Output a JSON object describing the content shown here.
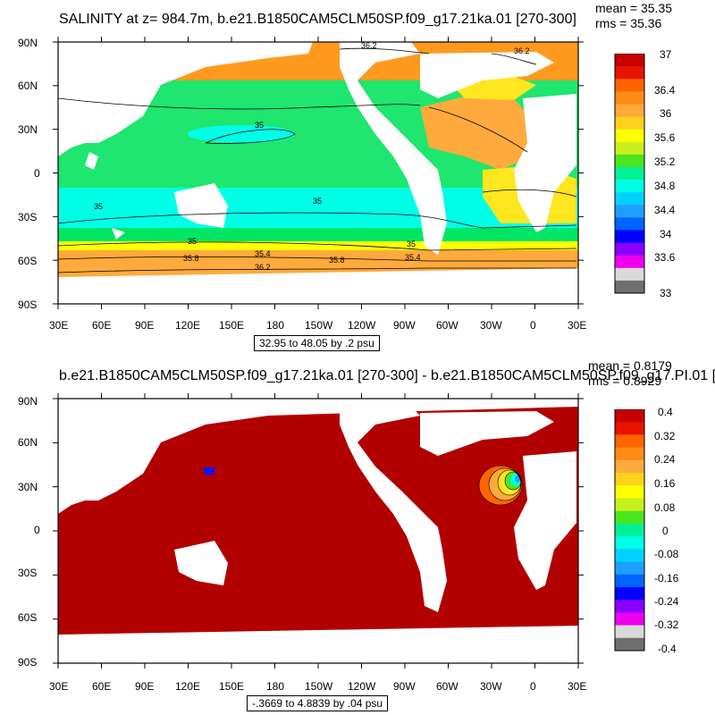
{
  "top_panel": {
    "title": "SALINITY at z= 984.7m, b.e21.B1850CAM5CLM50SP.f09_g17.21ka.01 [270-300]",
    "mean": "mean = 35.35",
    "rms": "rms = 35.36",
    "range_note": "32.95 to 48.05 by .2 psu",
    "colorbar_labels": [
      "37",
      "36.4",
      "36",
      "35.6",
      "35.2",
      "34.8",
      "34.4",
      "34",
      "33.6",
      "33"
    ],
    "contour_labels": [
      "36.2",
      "36.2",
      "35",
      "35",
      "35",
      "35",
      "35",
      "35.4",
      "35.4",
      "35.8",
      "35.8",
      "36.2"
    ]
  },
  "bottom_panel": {
    "title": "b.e21.B1850CAM5CLM50SP.f09_g17.21ka.01 [270-300] - b.e21.B1850CAM5CLM50SP.f09_g17.PI.01 [",
    "mean": "mean = 0.8179",
    "rms": "rms = 0.8929",
    "range_note": "-.3669 to 4.8839 by .04 psu",
    "colorbar_labels": [
      "0.4",
      "0.32",
      "0.24",
      "0.16",
      "0.08",
      "0",
      "-0.08",
      "-0.16",
      "-0.24",
      "-0.32",
      "-0.4"
    ]
  },
  "axes": {
    "lat_labels": [
      "90N",
      "60N",
      "30N",
      "0",
      "30S",
      "60S",
      "90S"
    ],
    "lon_labels": [
      "30E",
      "60E",
      "90E",
      "120E",
      "150E",
      "180",
      "150W",
      "120W",
      "90W",
      "60W",
      "30W",
      "0",
      "30E"
    ]
  },
  "colors": {
    "top_scale": [
      "#6e6e6e",
      "#d9d9d9",
      "#ee00ee",
      "#8a00ff",
      "#0000ff",
      "#0064ff",
      "#1ea0ff",
      "#00d2ff",
      "#00ffe6",
      "#00f096",
      "#4be61e",
      "#c8f01e",
      "#ffff00",
      "#ffd21e",
      "#ffaa3c",
      "#ff8c14",
      "#ff6400",
      "#e61400",
      "#c80000"
    ],
    "bottom_scale": [
      "#6e6e6e",
      "#d9d9d9",
      "#ee00ee",
      "#8a00ff",
      "#0000ff",
      "#0064ff",
      "#1ea0ff",
      "#00d2ff",
      "#00ffe6",
      "#00f096",
      "#4be61e",
      "#c8f01e",
      "#ffff00",
      "#ffd21e",
      "#ffaa3c",
      "#ff8c14",
      "#ff6400",
      "#e61400",
      "#c80000"
    ],
    "land": "#ffffff",
    "anomaly_fill": "#b20000"
  }
}
